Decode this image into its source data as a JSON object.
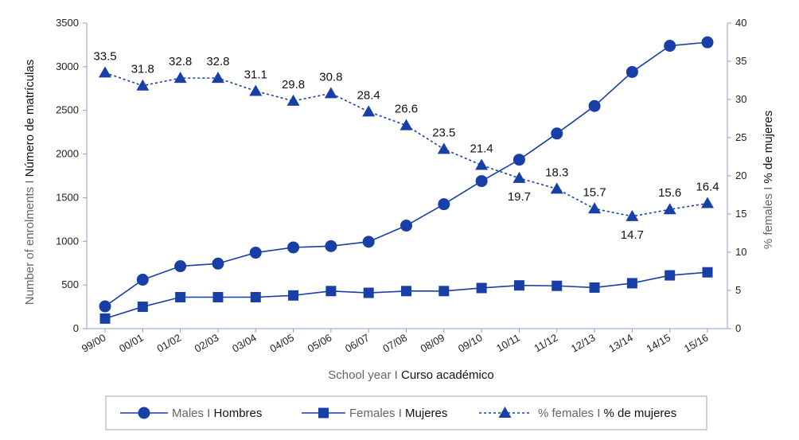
{
  "chart_data": {
    "type": "line",
    "categories": [
      "99/00",
      "00/01",
      "01/02",
      "02/03",
      "03/04",
      "04/05",
      "05/06",
      "06/07",
      "07/08",
      "08/09",
      "09/10",
      "10/11",
      "11/12",
      "12/13",
      "13/14",
      "14/15",
      "15/16"
    ],
    "series": [
      {
        "name": "Males",
        "name_es": "Hombres",
        "axis": "left",
        "marker": "circle",
        "dash": "solid",
        "values": [
          255,
          560,
          715,
          745,
          870,
          930,
          945,
          995,
          1180,
          1425,
          1690,
          1935,
          2235,
          2550,
          2940,
          3240,
          3280
        ]
      },
      {
        "name": "Females",
        "name_es": "Mujeres",
        "axis": "left",
        "marker": "square",
        "dash": "solid",
        "values": [
          115,
          250,
          360,
          360,
          360,
          380,
          430,
          410,
          430,
          430,
          465,
          495,
          490,
          470,
          520,
          610,
          645
        ]
      },
      {
        "name": "% females",
        "name_es": "% de mujeres",
        "axis": "right",
        "marker": "triangle",
        "dash": "dotted",
        "values": [
          33.5,
          31.8,
          32.8,
          32.8,
          31.1,
          29.8,
          30.8,
          28.4,
          26.6,
          23.5,
          21.4,
          19.7,
          18.3,
          15.7,
          14.7,
          15.6,
          16.4
        ],
        "labels": [
          "33.5",
          "31.8",
          "32.8",
          "32.8",
          "31.1",
          "29.8",
          "30.8",
          "28.4",
          "26.6",
          "23.5",
          "21.4",
          "19.7",
          "18.3",
          "15.7",
          "14.7",
          "15.6",
          "16.4"
        ],
        "label_position": [
          "above",
          "above",
          "above",
          "above",
          "above",
          "above",
          "above",
          "above",
          "above",
          "above",
          "above",
          "below",
          "above",
          "above",
          "below",
          "above",
          "above"
        ]
      }
    ],
    "xlabel": {
      "en": "School year",
      "sep": " I ",
      "es": "Curso académico"
    },
    "ylabel_left": {
      "en": "Number of enrolments",
      "sep": " I ",
      "es": "Número de matrículas"
    },
    "ylabel_right": {
      "en": "% females",
      "sep": " I ",
      "es": "% de mujeres"
    },
    "ylim_left": [
      0,
      3500
    ],
    "yticks_left": [
      0,
      500,
      1000,
      1500,
      2000,
      2500,
      3000,
      3500
    ],
    "ylim_right": [
      0,
      40
    ],
    "yticks_right": [
      0,
      5,
      10,
      15,
      20,
      25,
      30,
      35,
      40
    ],
    "grid": false,
    "legend_position": "bottom",
    "colors": {
      "line": "#173fa6",
      "axis": "#8aa0c8",
      "label_grey": "#666666",
      "label_dark": "#111111"
    }
  }
}
